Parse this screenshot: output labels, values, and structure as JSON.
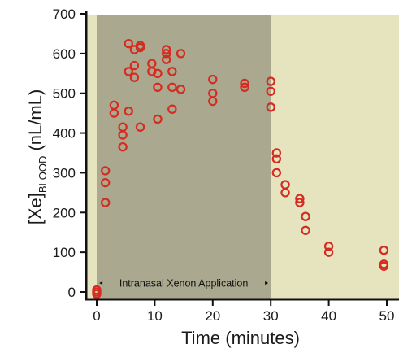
{
  "chart_data": {
    "type": "scatter",
    "xlabel": "Time (minutes)",
    "ylabel": {
      "prefix": "[Xe]",
      "subscript": "BLOOD",
      "suffix": " (nL/mL)"
    },
    "xlim": [
      -3,
      51
    ],
    "ylim": [
      -75,
      700
    ],
    "xticks": [
      0,
      10,
      20,
      30,
      40,
      50
    ],
    "yticks": [
      0,
      100,
      200,
      300,
      400,
      500,
      600,
      700
    ],
    "grid": false,
    "shaded_region": {
      "x_start": 0,
      "x_end": 30,
      "label": "Intranasal Xenon Application"
    },
    "colors": {
      "background": "#e6e4bf",
      "shaded_region": "#aaa98f",
      "markers": "#d62b20",
      "axis": "#111111"
    },
    "series": [
      {
        "marker": "open-circle",
        "points": [
          [
            0,
            0
          ],
          [
            0,
            5
          ],
          [
            0,
            -5
          ],
          [
            1.5,
            305
          ],
          [
            1.5,
            275
          ],
          [
            1.5,
            225
          ],
          [
            3,
            470
          ],
          [
            3,
            450
          ],
          [
            4.5,
            415
          ],
          [
            4.5,
            395
          ],
          [
            4.5,
            365
          ],
          [
            5.5,
            625
          ],
          [
            5.5,
            555
          ],
          [
            5.5,
            455
          ],
          [
            6.5,
            610
          ],
          [
            6.5,
            570
          ],
          [
            6.5,
            540
          ],
          [
            7.5,
            620
          ],
          [
            7.5,
            615
          ],
          [
            7.5,
            415
          ],
          [
            9.5,
            575
          ],
          [
            9.5,
            555
          ],
          [
            10.5,
            550
          ],
          [
            10.5,
            515
          ],
          [
            10.5,
            435
          ],
          [
            12,
            610
          ],
          [
            12,
            600
          ],
          [
            12,
            585
          ],
          [
            13,
            555
          ],
          [
            13,
            515
          ],
          [
            13,
            460
          ],
          [
            14.5,
            600
          ],
          [
            14.5,
            510
          ],
          [
            20,
            535
          ],
          [
            20,
            500
          ],
          [
            20,
            480
          ],
          [
            25.5,
            525
          ],
          [
            25.5,
            515
          ],
          [
            30,
            530
          ],
          [
            30,
            505
          ],
          [
            30,
            465
          ],
          [
            31,
            350
          ],
          [
            31,
            335
          ],
          [
            31,
            300
          ],
          [
            32.5,
            270
          ],
          [
            32.5,
            250
          ],
          [
            35,
            235
          ],
          [
            35,
            225
          ],
          [
            36,
            190
          ],
          [
            36,
            155
          ],
          [
            40,
            115
          ],
          [
            40,
            100
          ],
          [
            49.5,
            105
          ],
          [
            49.5,
            70
          ],
          [
            49.5,
            65
          ]
        ]
      }
    ]
  }
}
